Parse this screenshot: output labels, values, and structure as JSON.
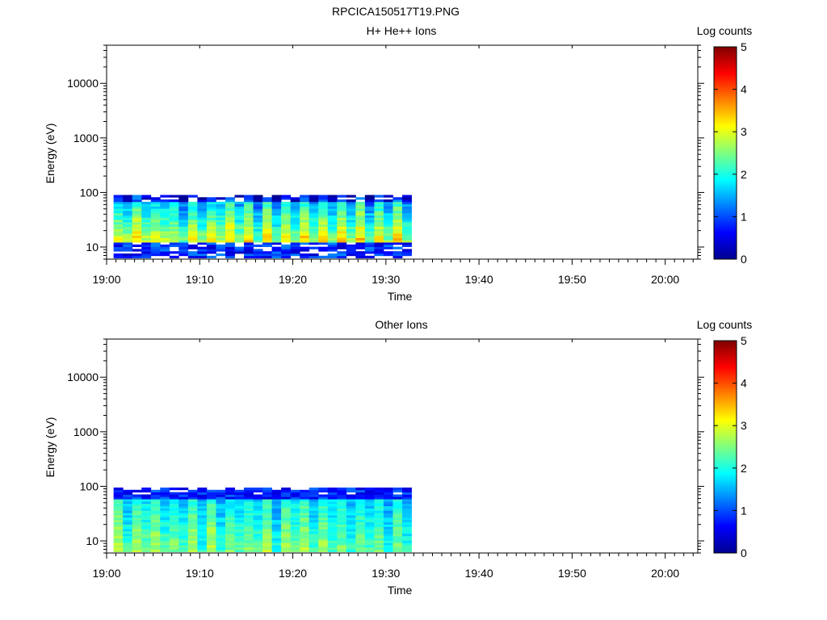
{
  "figure_title": "RPCICA150517T19.PNG",
  "colormap": [
    "#00008f",
    "#0000ff",
    "#007fff",
    "#00ffff",
    "#7fff7f",
    "#ffff00",
    "#ff7f00",
    "#ff0000",
    "#7f0000"
  ],
  "chart_data": [
    {
      "type": "heatmap",
      "title": "H+ He++ Ions",
      "xlabel": "Time",
      "ylabel": "Energy (eV)",
      "x_ticks": [
        "19:00",
        "19:10",
        "19:20",
        "19:30",
        "19:40",
        "19:50",
        "20:00"
      ],
      "x_range": [
        "19:00:00",
        "20:03:30"
      ],
      "y_scale": "log",
      "y_ticks": [
        "10",
        "100",
        "1000",
        "10000"
      ],
      "y_range": [
        6,
        50000
      ],
      "colorbar_label": "Log counts",
      "colorbar_ticks": [
        "0",
        "1",
        "2",
        "3",
        "4",
        "5"
      ],
      "colorbar_range": [
        0,
        5
      ],
      "data_time_range": [
        "19:00:45",
        "19:32:45"
      ],
      "data_energy_range": [
        6.3,
        90
      ],
      "profile": {
        "lowband_top_eV": 12,
        "description": "upper band (12-90 eV) mostly 2-3.2 log counts with alternating sweep columns; lower band (6-12 eV) mostly 0-1 log counts with gaps"
      }
    },
    {
      "type": "heatmap",
      "title": "Other Ions",
      "xlabel": "Time",
      "ylabel": "Energy (eV)",
      "x_ticks": [
        "19:00",
        "19:10",
        "19:20",
        "19:30",
        "19:40",
        "19:50",
        "20:00"
      ],
      "x_range": [
        "19:00:00",
        "20:03:30"
      ],
      "y_scale": "log",
      "y_ticks": [
        "10",
        "100",
        "1000",
        "10000"
      ],
      "y_range": [
        6,
        50000
      ],
      "colorbar_label": "Log counts",
      "colorbar_ticks": [
        "0",
        "1",
        "2",
        "3",
        "4",
        "5"
      ],
      "colorbar_range": [
        0,
        5
      ],
      "data_time_range": [
        "19:00:45",
        "19:32:45"
      ],
      "data_energy_range": [
        6.3,
        95
      ],
      "profile": {
        "description": "counts 1.5-3 log counts below 60 eV, dropping to 0-1 log counts near 90 eV"
      }
    }
  ]
}
